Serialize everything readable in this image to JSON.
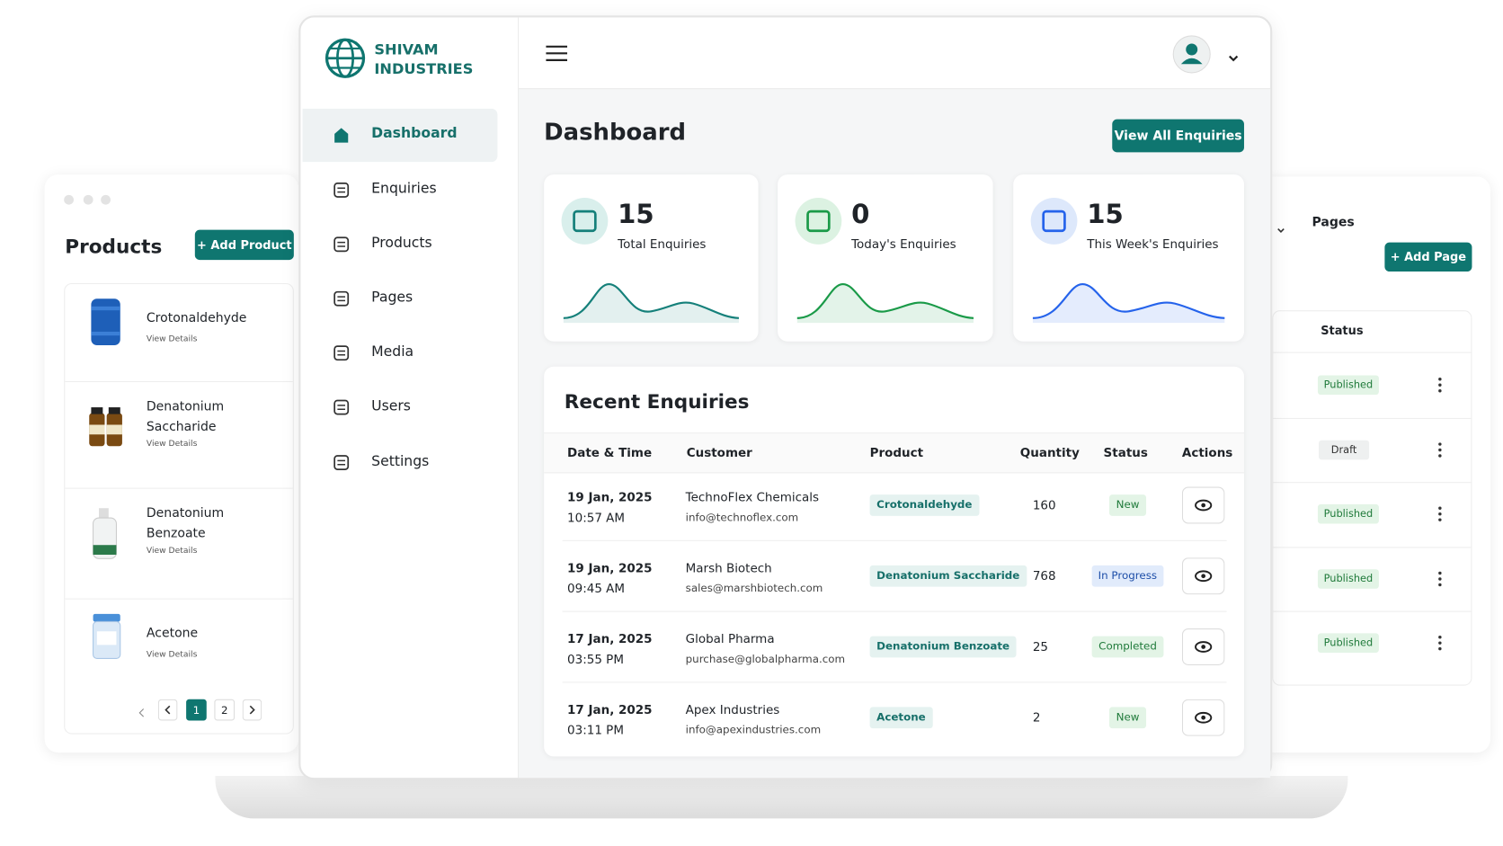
{
  "products_panel": {
    "title": "Products",
    "add_button": "+ Add Product",
    "items": [
      {
        "name": "Crotonaldehyde",
        "link": "View Details"
      },
      {
        "name": "Denatonium Saccharide",
        "link": "View Details"
      },
      {
        "name": "Denatonium Benzoate",
        "link": "View Details"
      },
      {
        "name": "Acetone",
        "link": "View Details"
      }
    ],
    "pages": [
      1,
      2
    ]
  },
  "sidebar": {
    "brand": "SHIVAM INDUSTRIES",
    "nav": [
      "Dashboard",
      "Enquiries",
      "Products",
      "Pages",
      "Media",
      "Users",
      "Settings"
    ]
  },
  "dashboard": {
    "title": "Dashboard",
    "view_all_button": "View All Enquiries",
    "stats": [
      {
        "value": 15,
        "label": "Total Enquiries"
      },
      {
        "value": 0,
        "label": "Today's Enquiries"
      },
      {
        "value": 15,
        "label": "This Week's Enquiries"
      }
    ],
    "recent": {
      "title": "Recent Enquiries",
      "columns": [
        "Date & Time",
        "Customer",
        "Product",
        "Quantity",
        "Status",
        "Actions"
      ],
      "rows": [
        {
          "date": "19 Jan, 2025",
          "time": "10:57 AM",
          "customer": "TechnoFlex Chemicals",
          "email": "info@technoflex.com",
          "product": "Crotonaldehyde",
          "quantity": 160,
          "status": "New"
        },
        {
          "date": "19 Jan, 2025",
          "time": "09:45 AM",
          "customer": "Marsh Biotech",
          "email": "sales@marshbiotech.com",
          "product": "Denatonium Saccharide",
          "quantity": 768,
          "status": "In Progress"
        },
        {
          "date": "17 Jan, 2025",
          "time": "03:55 PM",
          "customer": "Global Pharma",
          "email": "purchase@globalpharma.com",
          "product": "Denatonium Benzoate",
          "quantity": 25,
          "status": "Completed"
        },
        {
          "date": "17 Jan, 2025",
          "time": "03:11 PM",
          "customer": "Apex Industries",
          "email": "info@apexindustries.com",
          "product": "Acetone",
          "quantity": 2,
          "status": "New"
        }
      ]
    }
  },
  "pages_panel": {
    "title": "Pages",
    "add_button": "+ Add Page",
    "status_header": "Status",
    "statuses": [
      "Published",
      "Draft",
      "Published",
      "Published",
      "Published"
    ]
  }
}
